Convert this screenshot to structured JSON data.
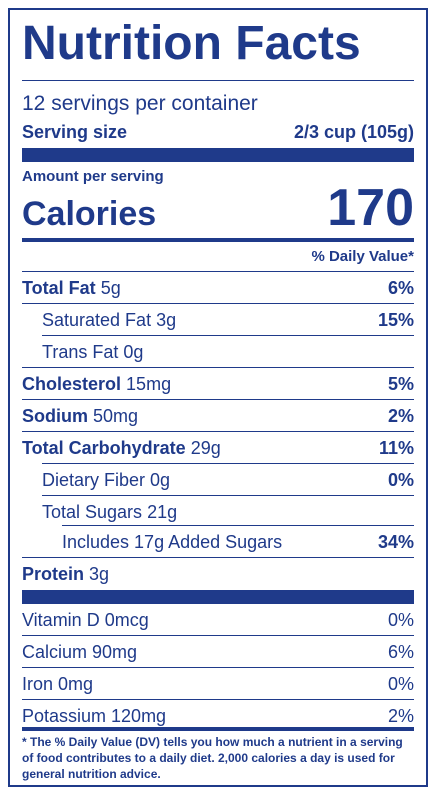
{
  "title": "Nutrition Facts",
  "servings": "12 servings per container",
  "serving_size": {
    "label": "Serving size",
    "value": "2/3 cup (105g)"
  },
  "amount_label": "Amount per serving",
  "calories": {
    "label": "Calories",
    "value": "170"
  },
  "dv_header": "% Daily Value*",
  "rows": [
    {
      "name": "Total Fat",
      "amount": "5g",
      "dv": "6%"
    },
    {
      "name": "Saturated Fat",
      "amount": "3g",
      "dv": "15%"
    },
    {
      "name": "Trans Fat",
      "amount": "0g",
      "dv": ""
    },
    {
      "name": "Cholesterol",
      "amount": "15mg",
      "dv": "5%"
    },
    {
      "name": "Sodium",
      "amount": "50mg",
      "dv": "2%"
    },
    {
      "name": "Total Carbohydrate",
      "amount": "29g",
      "dv": "11%"
    },
    {
      "name": "Dietary Fiber",
      "amount": "0g",
      "dv": "0%"
    },
    {
      "name": "Total Sugars",
      "amount": "21g",
      "dv": ""
    },
    {
      "name": "Includes 17g Added Sugars",
      "amount": "",
      "dv": "34%"
    },
    {
      "name": "Protein",
      "amount": "3g",
      "dv": ""
    }
  ],
  "vitamins": [
    {
      "name": "Vitamin D 0mcg",
      "dv": "0%"
    },
    {
      "name": "Calcium 90mg",
      "dv": "6%"
    },
    {
      "name": "Iron 0mg",
      "dv": "0%"
    },
    {
      "name": "Potassium 120mg",
      "dv": "2%"
    }
  ],
  "footnote": "* The % Daily Value (DV) tells you how much a nutrient in a serving of food contributes to a daily diet. 2,000 calories a day is used for general nutrition advice.",
  "colors": {
    "ink": "#1f3a8a",
    "background": "#ffffff"
  }
}
